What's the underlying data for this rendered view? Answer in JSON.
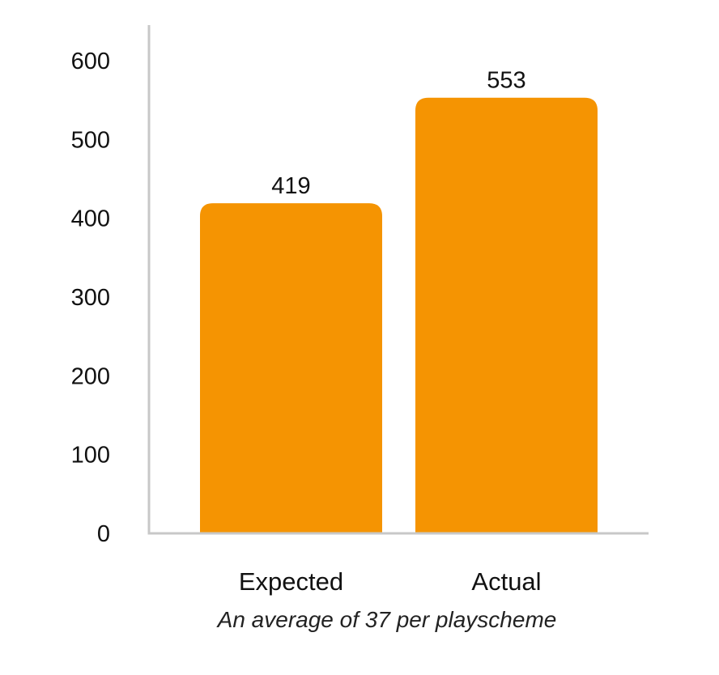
{
  "chart_data": {
    "type": "bar",
    "categories": [
      "Expected",
      "Actual"
    ],
    "values": [
      419,
      553
    ],
    "data_labels": [
      "419",
      "553"
    ],
    "caption": "An average of 37 per playscheme",
    "ylim": [
      0,
      600
    ],
    "yticks": [
      0,
      100,
      200,
      300,
      400,
      500,
      600
    ],
    "grid": false,
    "legend": "none",
    "bar_color": "#F59402",
    "axis_color": "#C8C8C8"
  }
}
